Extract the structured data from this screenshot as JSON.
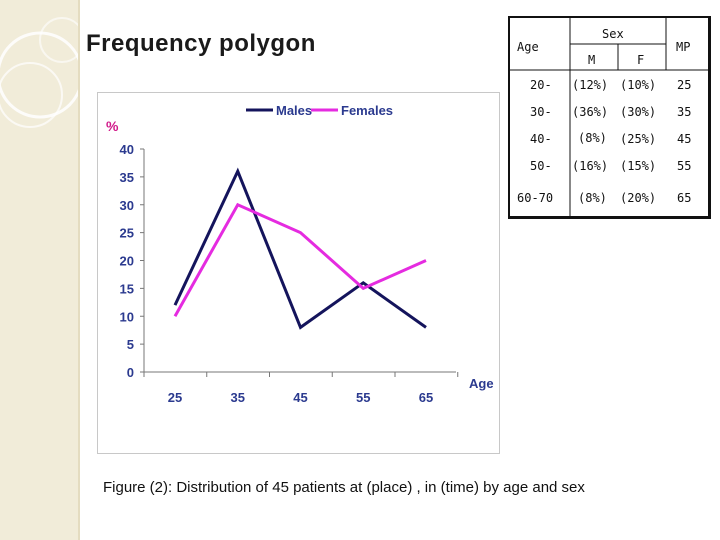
{
  "slide": {
    "title": "Frequency polygon",
    "caption": "Figure (2): Distribution of 45 patients at (place) , in (time)  by age and sex"
  },
  "chart_data": {
    "type": "line",
    "title": "",
    "ylabel": "%",
    "xlabel": "Age",
    "categories": [
      25,
      35,
      45,
      55,
      65
    ],
    "ylim": [
      0,
      40
    ],
    "yticks": [
      0,
      5,
      10,
      15,
      20,
      25,
      30,
      35,
      40
    ],
    "legend_position": "top",
    "grid": false,
    "series": [
      {
        "name": "Males",
        "color": "#14145c",
        "values": [
          12,
          36,
          8,
          16,
          8
        ]
      },
      {
        "name": "Females",
        "color": "#e52be0",
        "values": [
          10,
          30,
          25,
          15,
          20
        ]
      }
    ]
  },
  "table": {
    "age_header": "Age",
    "sex_header": "Sex",
    "m_header": "M",
    "f_header": "F",
    "mp_header": "MP",
    "rows": [
      {
        "age": "20-",
        "m": "(12%)",
        "f": "(10%)",
        "mp": "25"
      },
      {
        "age": "30-",
        "m": "(36%)",
        "f": "(30%)",
        "mp": "35"
      },
      {
        "age": "40-",
        "m": "(8%)",
        "f": "(25%)",
        "mp": "45"
      },
      {
        "age": "50-",
        "m": "(16%)",
        "f": "(15%)",
        "mp": "55"
      },
      {
        "age": "60-70",
        "m": "(8%)",
        "f": "(20%)",
        "mp": "65"
      }
    ]
  }
}
